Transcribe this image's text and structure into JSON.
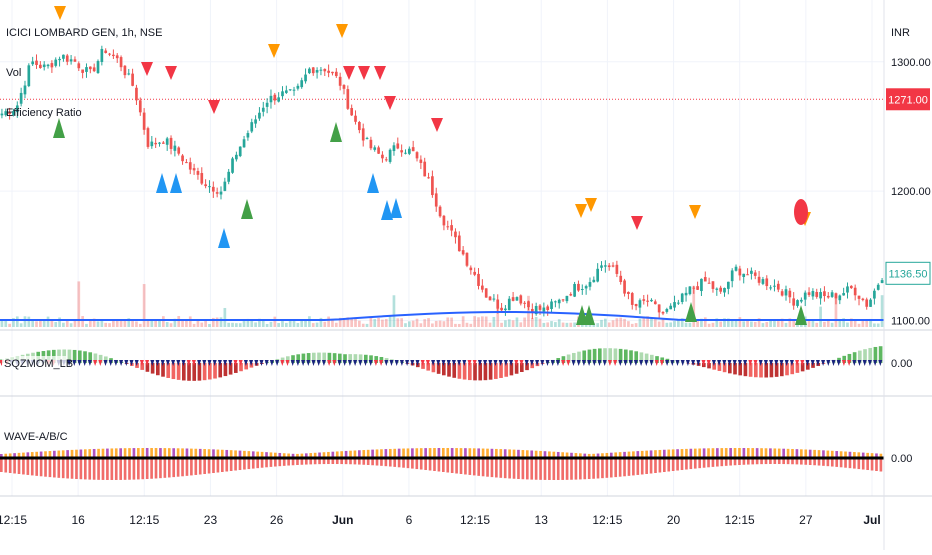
{
  "symbol_line": "ICICI LOMBARD GEN, 1h, NSE",
  "currency": "INR",
  "indicators": {
    "vol": "Vol",
    "efficiency": "Efficiency Ratio",
    "pane2": "SQZMOM_LB",
    "pane3": "WAVE-A/B/C"
  },
  "colors": {
    "up": "#26a69a",
    "down": "#ef5350",
    "ma": "#2962ff",
    "red_marker": "#f23645",
    "orange": "#ff9800",
    "green_marker": "#43a047",
    "blue_marker": "#2196f3",
    "hline": "#f23645",
    "last_tag": "#26a69a"
  },
  "chart_data": [
    {
      "type": "candlestick",
      "price_labels": [
        "1300.00",
        "1271.00",
        "1200.00",
        "1136.50",
        "1100.00"
      ],
      "price_ticks": [
        1300,
        1200,
        1100
      ],
      "ylim": [
        1095,
        1340
      ],
      "hline": {
        "value": 1271,
        "label": "1271.00"
      },
      "last": {
        "value": 1136.5,
        "label": "1136.50"
      },
      "x_labels": [
        "12:15",
        "16",
        "12:15",
        "23",
        "26",
        "Jun",
        "6",
        "12:15",
        "13",
        "12:15",
        "20",
        "12:15",
        "27",
        "Jul"
      ],
      "close_path": [
        1260,
        1265,
        1300,
        1295,
        1305,
        1300,
        1290,
        1310,
        1300,
        1280,
        1235,
        1240,
        1230,
        1215,
        1205,
        1200,
        1230,
        1250,
        1270,
        1275,
        1275,
        1295,
        1295,
        1285,
        1255,
        1235,
        1225,
        1235,
        1230,
        1210,
        1180,
        1160,
        1140,
        1120,
        1110,
        1120,
        1110,
        1108,
        1115,
        1125,
        1130,
        1145,
        1135,
        1110,
        1115,
        1105,
        1112,
        1125,
        1130,
        1120,
        1140,
        1135,
        1130,
        1125,
        1115,
        1122,
        1118,
        1120,
        1125,
        1112,
        1135
      ]
    },
    {
      "type": "histogram",
      "name": "SQZMOM_LB",
      "value_label": "0.00"
    },
    {
      "type": "histogram",
      "name": "WAVE-A/B/C",
      "value_label": "0.00"
    }
  ]
}
